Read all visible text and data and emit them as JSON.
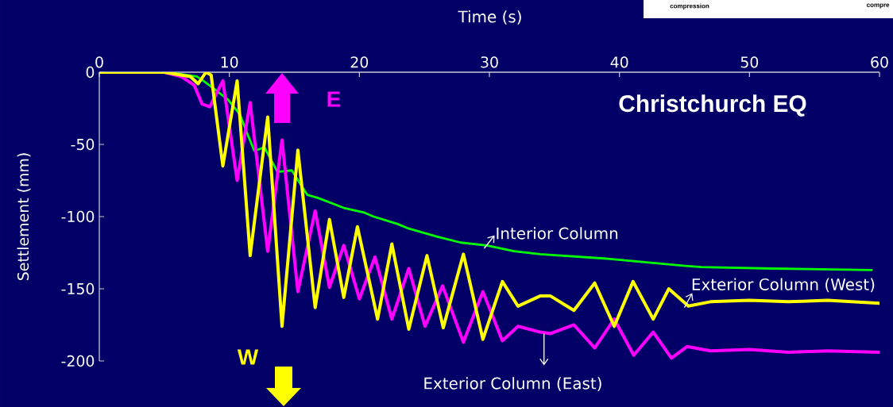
{
  "chart_data": {
    "type": "line",
    "title": "Christchurch EQ",
    "xlabel": "Time (s)",
    "ylabel": "Settlement (mm)",
    "xlim": [
      0,
      60
    ],
    "xticks": [
      0,
      10,
      20,
      30,
      40,
      50,
      60
    ],
    "ylim": [
      -200,
      0
    ],
    "yticks": [
      -200,
      -150,
      -100,
      -50,
      0
    ],
    "annotations": [
      "E",
      "W",
      "compression",
      "compre"
    ],
    "series": [
      {
        "name": "Interior Column",
        "color": "#00ff00",
        "x": [
          0,
          5,
          6.0,
          7.5,
          8.0,
          8.6,
          9.9,
          10.8,
          11.4,
          11.9,
          12.1,
          12.7,
          13.7,
          14.8,
          16.0,
          16.8,
          18.8,
          20.3,
          21.1,
          22.9,
          23.7,
          26.0,
          27.8,
          29.8,
          31.9,
          33.9,
          38.8,
          44.9,
          46.3,
          51.8,
          59.4
        ],
        "values": [
          0,
          0,
          -1,
          -3,
          -6,
          -10,
          -19,
          -29,
          -43,
          -54,
          -54,
          -52,
          -69,
          -68,
          -85,
          -87,
          -94,
          -97,
          -100,
          -105,
          -108,
          -114,
          -118,
          -120,
          -124,
          -126,
          -129,
          -134,
          -135,
          -136,
          -137
        ]
      },
      {
        "name": "Exterior Column (East)",
        "color": "#ff00ff",
        "x": [
          0,
          5,
          6.3,
          7.3,
          7.9,
          8.5,
          9.5,
          10.6,
          11.6,
          12.95,
          14.05,
          15.27,
          16.6,
          17.7,
          18.8,
          20.0,
          21.2,
          22.5,
          23.8,
          25.05,
          26.4,
          28.0,
          29.5,
          31.0,
          32.2,
          33.9,
          34.7,
          36.5,
          38.1,
          39.6,
          41.1,
          42.6,
          44.0,
          45.2,
          47,
          50,
          53,
          56,
          60
        ],
        "values": [
          0,
          0,
          -3,
          -9,
          -22,
          -24,
          -6,
          -75,
          -21,
          -124,
          -47,
          -152,
          -96,
          -149,
          -120,
          -157,
          -128,
          -171,
          -136,
          -176,
          -148,
          -187,
          -152,
          -186,
          -176,
          -180,
          -181,
          -175,
          -191,
          -171,
          -196,
          -180,
          -198,
          -190,
          -193,
          -192,
          -194,
          -193,
          -194
        ]
      },
      {
        "name": "Exterior Column (West)",
        "color": "#ffff00",
        "x": [
          0,
          5,
          7.0,
          7.6,
          8.2,
          8.6,
          9.5,
          10.6,
          11.6,
          12.95,
          14.05,
          15.27,
          16.6,
          17.7,
          18.8,
          19.85,
          21.4,
          22.5,
          23.8,
          25.2,
          26.45,
          28.0,
          29.5,
          31.0,
          32.2,
          33.9,
          34.7,
          36.5,
          38.1,
          39.6,
          41.05,
          42.6,
          43.8,
          45.3,
          47,
          50,
          53,
          56,
          60
        ],
        "values": [
          0,
          0,
          -3,
          -8,
          0,
          -2,
          -65,
          -6,
          -127,
          -31,
          -176,
          -54,
          -163,
          -102,
          -156,
          -107,
          -171,
          -119,
          -178,
          -127,
          -177,
          -126,
          -185,
          -145,
          -162,
          -155,
          -155,
          -165,
          -146,
          -176,
          -145,
          -171,
          -150,
          -162,
          -159,
          -158,
          -159,
          -158,
          -160
        ]
      }
    ]
  }
}
